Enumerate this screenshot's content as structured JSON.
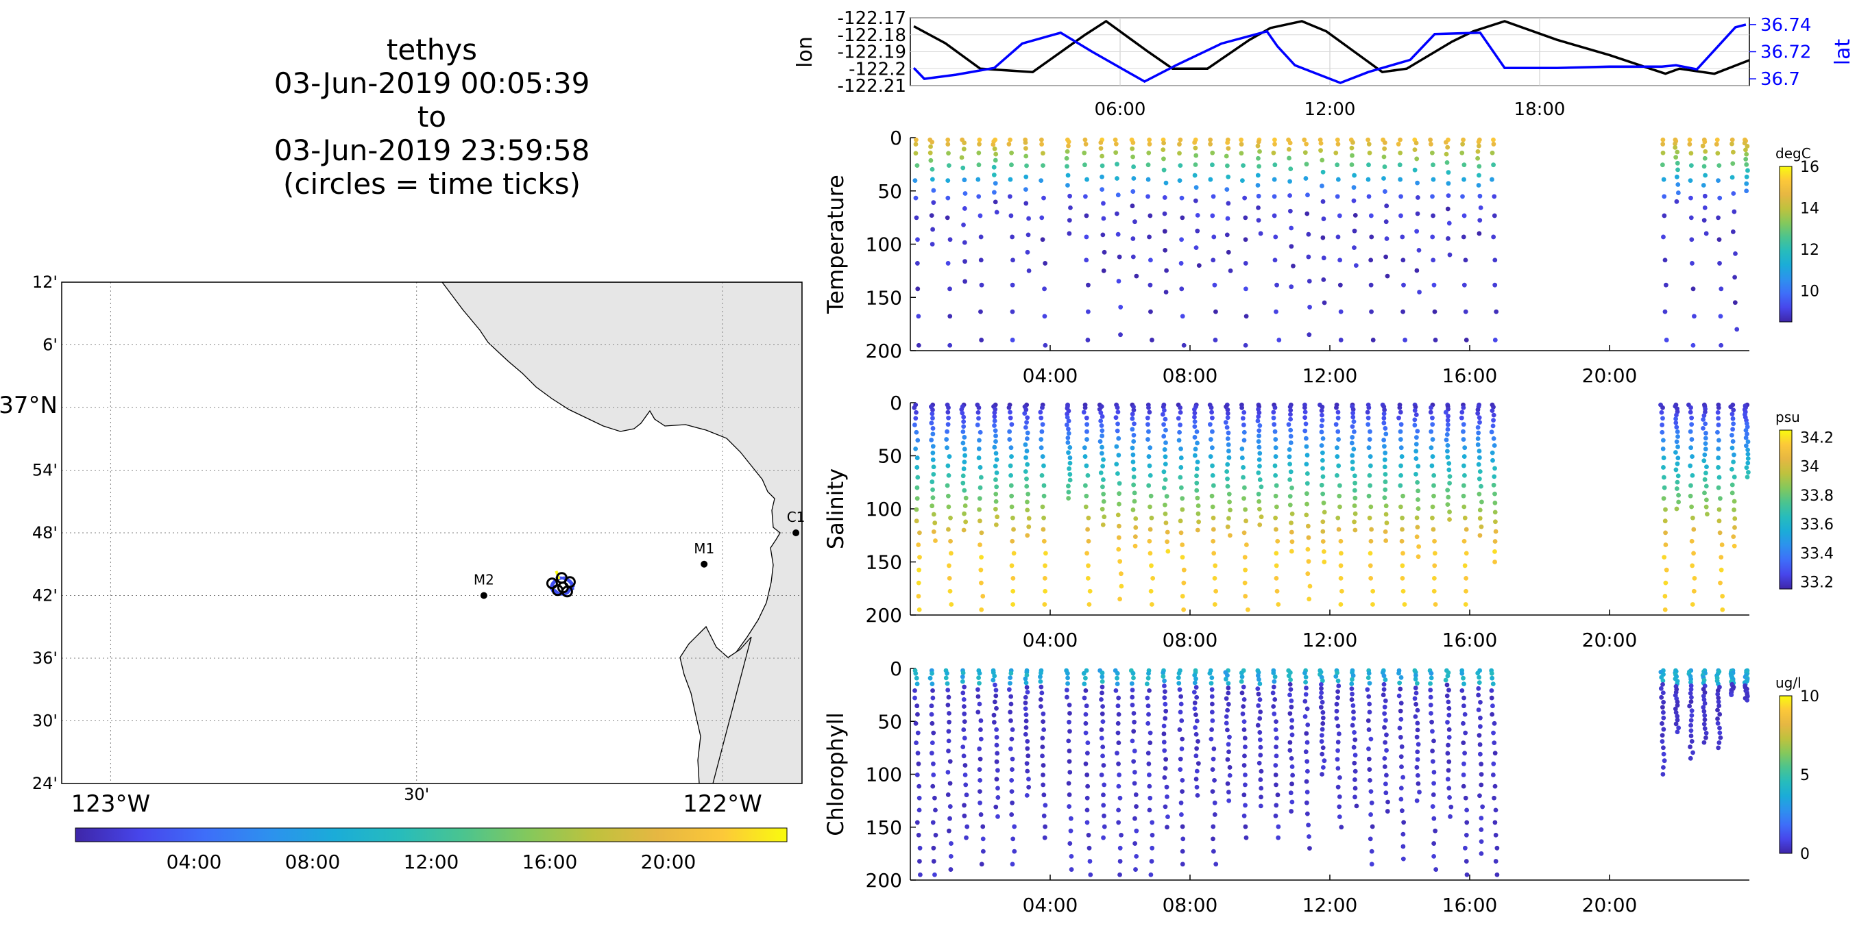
{
  "title": {
    "line1": "tethys",
    "line2": "03-Jun-2019 00:05:39",
    "line3": "to",
    "line4": "03-Jun-2019 23:59:58",
    "line5": "(circles = time ticks)"
  },
  "colors": {
    "land": "#e6e6e6",
    "lon_line": "#000000",
    "lat_line": "#0000ff",
    "parula": [
      "#3e26a8",
      "#4746eb",
      "#3e6ef9",
      "#2d91ee",
      "#1bacd8",
      "#27bcbc",
      "#4bc48f",
      "#84c85c",
      "#bec23e",
      "#e6b742",
      "#fcc839",
      "#f9fb0e"
    ]
  },
  "map": {
    "lat_ticks": [
      "12'",
      "6'",
      "37°N",
      "54'",
      "48'",
      "42'",
      "36'",
      "30'",
      "24'"
    ],
    "lon_ticks": [
      "123°W",
      "30'",
      "122°W"
    ],
    "stations": [
      {
        "name": "M2",
        "lon": -122.39,
        "lat": 36.7
      },
      {
        "name": "M1",
        "lon": -122.03,
        "lat": 36.75
      },
      {
        "name": "C1",
        "lon": -121.88,
        "lat": 36.8
      }
    ],
    "colorbar_ticks": [
      "04:00",
      "08:00",
      "12:00",
      "16:00",
      "20:00"
    ]
  },
  "time_axis_ticks": [
    "04:00",
    "08:00",
    "12:00",
    "16:00",
    "20:00"
  ],
  "chart_data": [
    {
      "type": "line",
      "xlabel": "",
      "ylabel": "lon",
      "y2label": "lat",
      "xlim": [
        0,
        24
      ],
      "xticks": [
        "06:00",
        "12:00",
        "18:00"
      ],
      "ylim": [
        -122.21,
        -122.17
      ],
      "yticks": [
        "-122.17",
        "-122.18",
        "-122.19",
        "-122.2",
        "-122.21"
      ],
      "y2lim": [
        36.695,
        36.745
      ],
      "y2ticks": [
        "36.74",
        "36.72",
        "36.7"
      ],
      "series": [
        {
          "axis": "left",
          "x": [
            0.1,
            1,
            2,
            3.5,
            5,
            5.6,
            6.8,
            7.5,
            8.5,
            9.7,
            10.3,
            11.2,
            11.9,
            12.7,
            13.5,
            14.2,
            15.5,
            16.1,
            17,
            18.5,
            20,
            21.6,
            22,
            23,
            24
          ],
          "y": [
            -122.175,
            -122.185,
            -122.2,
            -122.202,
            -122.18,
            -122.172,
            -122.19,
            -122.2,
            -122.2,
            -122.183,
            -122.176,
            -122.172,
            -122.178,
            -122.19,
            -122.202,
            -122.2,
            -122.184,
            -122.178,
            -122.172,
            -122.183,
            -122.192,
            -122.203,
            -122.2,
            -122.203,
            -122.195
          ]
        },
        {
          "axis": "right",
          "x": [
            0.1,
            0.4,
            1.3,
            2.4,
            3.2,
            4.3,
            5.2,
            6.7,
            7.6,
            8.9,
            10.2,
            10.5,
            11,
            12.3,
            13.1,
            14.3,
            15,
            16.3,
            17,
            18.5,
            20,
            21.5,
            21.9,
            22.5,
            23.6,
            23.9
          ],
          "y": [
            36.708,
            36.7,
            36.703,
            36.708,
            36.726,
            36.734,
            36.72,
            36.698,
            36.71,
            36.726,
            36.735,
            36.724,
            36.71,
            36.697,
            36.705,
            36.714,
            36.733,
            36.734,
            36.708,
            36.708,
            36.709,
            36.709,
            36.71,
            36.707,
            36.738,
            36.74
          ]
        }
      ]
    },
    {
      "type": "scatter",
      "ylabel": "Temperature",
      "unit": "degC",
      "xlim": [
        0,
        24
      ],
      "ylim": [
        200,
        0
      ],
      "yticks": [
        0,
        50,
        100,
        150,
        200
      ],
      "clim": [
        8.5,
        16
      ],
      "cbar_ticks": [
        10,
        12,
        14,
        16
      ],
      "profiles": [
        {
          "x": 0.15,
          "max": 195
        },
        {
          "x": 0.6,
          "max": 100
        },
        {
          "x": 1.05,
          "max": 195
        },
        {
          "x": 1.5,
          "max": 135
        },
        {
          "x": 1.95,
          "max": 190
        },
        {
          "x": 2.4,
          "max": 70
        },
        {
          "x": 2.85,
          "max": 190
        },
        {
          "x": 3.3,
          "max": 125
        },
        {
          "x": 3.75,
          "max": 195
        },
        {
          "x": 4.5,
          "max": 90
        },
        {
          "x": 5.0,
          "max": 190
        },
        {
          "x": 5.45,
          "max": 125
        },
        {
          "x": 5.9,
          "max": 185
        },
        {
          "x": 6.35,
          "max": 130
        },
        {
          "x": 6.8,
          "max": 190
        },
        {
          "x": 7.25,
          "max": 145
        },
        {
          "x": 7.7,
          "max": 195
        },
        {
          "x": 8.15,
          "max": 120
        },
        {
          "x": 8.6,
          "max": 190
        },
        {
          "x": 9.05,
          "max": 125
        },
        {
          "x": 9.5,
          "max": 195
        },
        {
          "x": 9.95,
          "max": 90
        },
        {
          "x": 10.4,
          "max": 190
        },
        {
          "x": 10.85,
          "max": 140
        },
        {
          "x": 11.3,
          "max": 185
        },
        {
          "x": 11.75,
          "max": 155
        },
        {
          "x": 12.2,
          "max": 190
        },
        {
          "x": 12.65,
          "max": 120
        },
        {
          "x": 13.1,
          "max": 190
        },
        {
          "x": 13.55,
          "max": 130
        },
        {
          "x": 14.0,
          "max": 190
        },
        {
          "x": 14.45,
          "max": 145
        },
        {
          "x": 14.9,
          "max": 190
        },
        {
          "x": 15.35,
          "max": 110
        },
        {
          "x": 15.8,
          "max": 190
        },
        {
          "x": 16.25,
          "max": 90
        },
        {
          "x": 16.65,
          "max": 190
        },
        {
          "x": 21.5,
          "max": 190
        },
        {
          "x": 21.9,
          "max": 60
        },
        {
          "x": 22.3,
          "max": 195
        },
        {
          "x": 22.7,
          "max": 90
        },
        {
          "x": 23.1,
          "max": 195
        },
        {
          "x": 23.5,
          "max": 180
        },
        {
          "x": 23.9,
          "max": 50
        }
      ]
    },
    {
      "type": "scatter",
      "ylabel": "Salinity",
      "unit": "psu",
      "xlim": [
        0,
        24
      ],
      "ylim": [
        200,
        0
      ],
      "yticks": [
        0,
        50,
        100,
        150,
        200
      ],
      "clim": [
        33.15,
        34.25
      ],
      "cbar_ticks": [
        33.2,
        33.4,
        33.6,
        33.8,
        34,
        34.2
      ],
      "profiles": [
        {
          "x": 0.15,
          "max": 195
        },
        {
          "x": 0.6,
          "max": 130
        },
        {
          "x": 1.05,
          "max": 190
        },
        {
          "x": 1.5,
          "max": 120
        },
        {
          "x": 1.95,
          "max": 195
        },
        {
          "x": 2.4,
          "max": 115
        },
        {
          "x": 2.85,
          "max": 190
        },
        {
          "x": 3.3,
          "max": 125
        },
        {
          "x": 3.75,
          "max": 190
        },
        {
          "x": 4.5,
          "max": 90
        },
        {
          "x": 5.0,
          "max": 190
        },
        {
          "x": 5.45,
          "max": 115
        },
        {
          "x": 5.9,
          "max": 185
        },
        {
          "x": 6.35,
          "max": 135
        },
        {
          "x": 6.8,
          "max": 190
        },
        {
          "x": 7.25,
          "max": 140
        },
        {
          "x": 7.7,
          "max": 195
        },
        {
          "x": 8.15,
          "max": 120
        },
        {
          "x": 8.6,
          "max": 190
        },
        {
          "x": 9.05,
          "max": 125
        },
        {
          "x": 9.5,
          "max": 195
        },
        {
          "x": 9.95,
          "max": 115
        },
        {
          "x": 10.4,
          "max": 190
        },
        {
          "x": 10.85,
          "max": 140
        },
        {
          "x": 11.3,
          "max": 185
        },
        {
          "x": 11.75,
          "max": 150
        },
        {
          "x": 12.2,
          "max": 190
        },
        {
          "x": 12.65,
          "max": 120
        },
        {
          "x": 13.1,
          "max": 190
        },
        {
          "x": 13.55,
          "max": 130
        },
        {
          "x": 14.0,
          "max": 190
        },
        {
          "x": 14.45,
          "max": 145
        },
        {
          "x": 14.9,
          "max": 190
        },
        {
          "x": 15.35,
          "max": 110
        },
        {
          "x": 15.8,
          "max": 190
        },
        {
          "x": 16.25,
          "max": 125
        },
        {
          "x": 16.65,
          "max": 150
        },
        {
          "x": 21.5,
          "max": 195
        },
        {
          "x": 21.9,
          "max": 100
        },
        {
          "x": 22.3,
          "max": 190
        },
        {
          "x": 22.7,
          "max": 105
        },
        {
          "x": 23.1,
          "max": 195
        },
        {
          "x": 23.5,
          "max": 135
        },
        {
          "x": 23.9,
          "max": 70
        }
      ]
    },
    {
      "type": "scatter",
      "ylabel": "Chlorophyll",
      "unit": "ug/l",
      "xlim": [
        0,
        24
      ],
      "ylim": [
        200,
        0
      ],
      "yticks": [
        0,
        50,
        100,
        150,
        200
      ],
      "clim": [
        0,
        10
      ],
      "cbar_ticks": [
        0,
        5,
        10
      ],
      "profiles": [
        {
          "x": 0.15,
          "max": 195
        },
        {
          "x": 0.6,
          "max": 195
        },
        {
          "x": 1.05,
          "max": 190
        },
        {
          "x": 1.5,
          "max": 160
        },
        {
          "x": 1.95,
          "max": 185
        },
        {
          "x": 2.4,
          "max": 140
        },
        {
          "x": 2.85,
          "max": 185
        },
        {
          "x": 3.3,
          "max": 120
        },
        {
          "x": 3.75,
          "max": 160
        },
        {
          "x": 4.5,
          "max": 190
        },
        {
          "x": 5.0,
          "max": 195
        },
        {
          "x": 5.45,
          "max": 160
        },
        {
          "x": 5.9,
          "max": 195
        },
        {
          "x": 6.35,
          "max": 190
        },
        {
          "x": 6.8,
          "max": 195
        },
        {
          "x": 7.25,
          "max": 150
        },
        {
          "x": 7.7,
          "max": 185
        },
        {
          "x": 8.15,
          "max": 120
        },
        {
          "x": 8.6,
          "max": 185
        },
        {
          "x": 9.05,
          "max": 125
        },
        {
          "x": 9.5,
          "max": 160
        },
        {
          "x": 9.95,
          "max": 130
        },
        {
          "x": 10.4,
          "max": 160
        },
        {
          "x": 10.85,
          "max": 135
        },
        {
          "x": 11.3,
          "max": 170
        },
        {
          "x": 11.75,
          "max": 100
        },
        {
          "x": 12.2,
          "max": 150
        },
        {
          "x": 12.65,
          "max": 130
        },
        {
          "x": 13.1,
          "max": 185
        },
        {
          "x": 13.55,
          "max": 135
        },
        {
          "x": 14.0,
          "max": 180
        },
        {
          "x": 14.45,
          "max": 125
        },
        {
          "x": 14.9,
          "max": 190
        },
        {
          "x": 15.35,
          "max": 140
        },
        {
          "x": 15.8,
          "max": 195
        },
        {
          "x": 16.25,
          "max": 175
        },
        {
          "x": 16.65,
          "max": 195
        },
        {
          "x": 21.5,
          "max": 100
        },
        {
          "x": 21.9,
          "max": 60
        },
        {
          "x": 22.3,
          "max": 85
        },
        {
          "x": 22.7,
          "max": 70
        },
        {
          "x": 23.1,
          "max": 75
        },
        {
          "x": 23.5,
          "max": 25
        },
        {
          "x": 23.9,
          "max": 30
        }
      ]
    }
  ]
}
